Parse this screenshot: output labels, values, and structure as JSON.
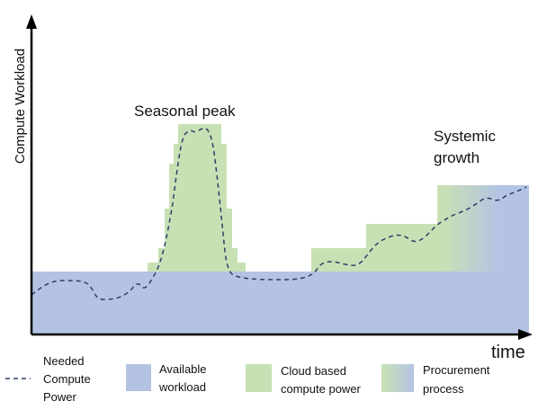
{
  "axes": {
    "y_label": "Compute Workload",
    "x_label": "time"
  },
  "annotations": {
    "seasonal_peak": "Seasonal peak",
    "systemic_growth_line1": "Systemic",
    "systemic_growth_line2": "growth"
  },
  "legend": {
    "needed_line1": "Needed",
    "needed_line2": "Compute",
    "needed_line3": "Power",
    "available_line1": "Available",
    "available_line2": "workload",
    "cloud_line1": "Cloud based",
    "cloud_line2": "compute power",
    "procurement_line1": "Procurement",
    "procurement_line2": "process"
  },
  "colors": {
    "available": "#b4c3e3",
    "cloud": "#c8e1b4",
    "procurement_from": "#c8e1b4",
    "procurement_to": "#b4c3e3",
    "needed_line": "#2d3e6b",
    "axis": "#000000"
  }
}
